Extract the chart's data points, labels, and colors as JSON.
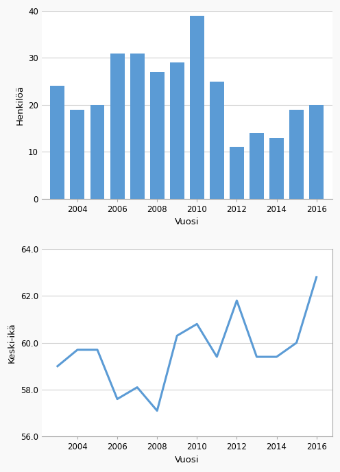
{
  "bar_years": [
    2003,
    2004,
    2005,
    2006,
    2007,
    2008,
    2009,
    2010,
    2011,
    2012,
    2013,
    2014,
    2015,
    2016
  ],
  "bar_values": [
    24,
    19,
    20,
    31,
    31,
    27,
    29,
    39,
    25,
    11,
    14,
    13,
    19,
    20
  ],
  "bar_color": "#5b9bd5",
  "bar_ylabel": "Henkilöä",
  "bar_xlabel": "Vuosi",
  "bar_ylim": [
    0,
    40
  ],
  "bar_yticks": [
    0,
    10,
    20,
    30,
    40
  ],
  "line_years": [
    2003,
    2004,
    2005,
    2006,
    2007,
    2008,
    2009,
    2010,
    2011,
    2012,
    2013,
    2014,
    2015,
    2016
  ],
  "line_values": [
    59.0,
    59.7,
    59.7,
    57.6,
    58.1,
    57.1,
    60.3,
    60.8,
    59.4,
    61.8,
    59.4,
    59.4,
    60.0,
    62.8
  ],
  "line_color": "#5b9bd5",
  "line_ylabel": "Keski-ikä",
  "line_xlabel": "Vuosi",
  "line_ylim": [
    56.0,
    64.0
  ],
  "line_yticks": [
    56.0,
    58.0,
    60.0,
    62.0,
    64.0
  ],
  "bg_color": "#f9f9f9",
  "plot_bg_color": "#ffffff",
  "grid_color": "#d0d0d0",
  "xticks": [
    2004,
    2006,
    2008,
    2010,
    2012,
    2014,
    2016
  ],
  "tick_fontsize": 8.5,
  "label_fontsize": 9.5
}
